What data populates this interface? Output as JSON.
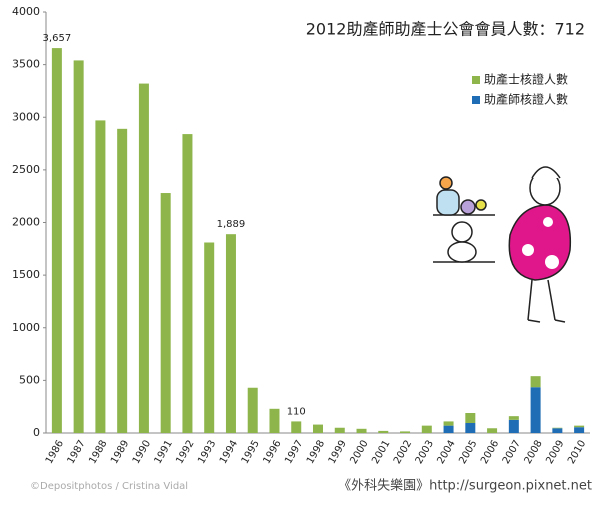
{
  "chart_data": {
    "type": "stacked_bar",
    "title": "2012助產師助產士公會會員人數：712",
    "categories": [
      "1986",
      "1987",
      "1988",
      "1989",
      "1990",
      "1991",
      "1992",
      "1993",
      "1994",
      "1995",
      "1996",
      "1997",
      "1998",
      "1999",
      "2000",
      "2001",
      "2002",
      "2003",
      "2004",
      "2005",
      "2006",
      "2007",
      "2008",
      "2009",
      "2010"
    ],
    "series": [
      {
        "name": "助產士核證人數",
        "color": "#8db54b",
        "values": [
          3657,
          3540,
          2970,
          2890,
          3320,
          2280,
          2840,
          1810,
          1889,
          430,
          230,
          110,
          80,
          50,
          40,
          20,
          15,
          70,
          40,
          95,
          45,
          35,
          105,
          5,
          15
        ],
        "value_labels": [
          "3,657",
          null,
          null,
          null,
          null,
          null,
          null,
          null,
          "1,889",
          null,
          null,
          "110",
          null,
          null,
          null,
          null,
          null,
          null,
          null,
          null,
          null,
          null,
          null,
          null,
          null
        ]
      },
      {
        "name": "助產師核證人數",
        "color": "#1f6db5",
        "values": [
          0,
          0,
          0,
          0,
          0,
          0,
          0,
          0,
          0,
          0,
          0,
          0,
          0,
          0,
          0,
          0,
          0,
          0,
          70,
          95,
          0,
          125,
          435,
          45,
          55
        ]
      }
    ],
    "ylim": [
      0,
      4000
    ],
    "yticks": [
      0,
      500,
      1000,
      1500,
      2000,
      2500,
      3000,
      3500,
      4000
    ],
    "legend": "upper-right",
    "credits": [
      "©Depositphotos / Cristina Vidal",
      "《外科失樂園》http://surgeon.pixnet.net"
    ]
  }
}
